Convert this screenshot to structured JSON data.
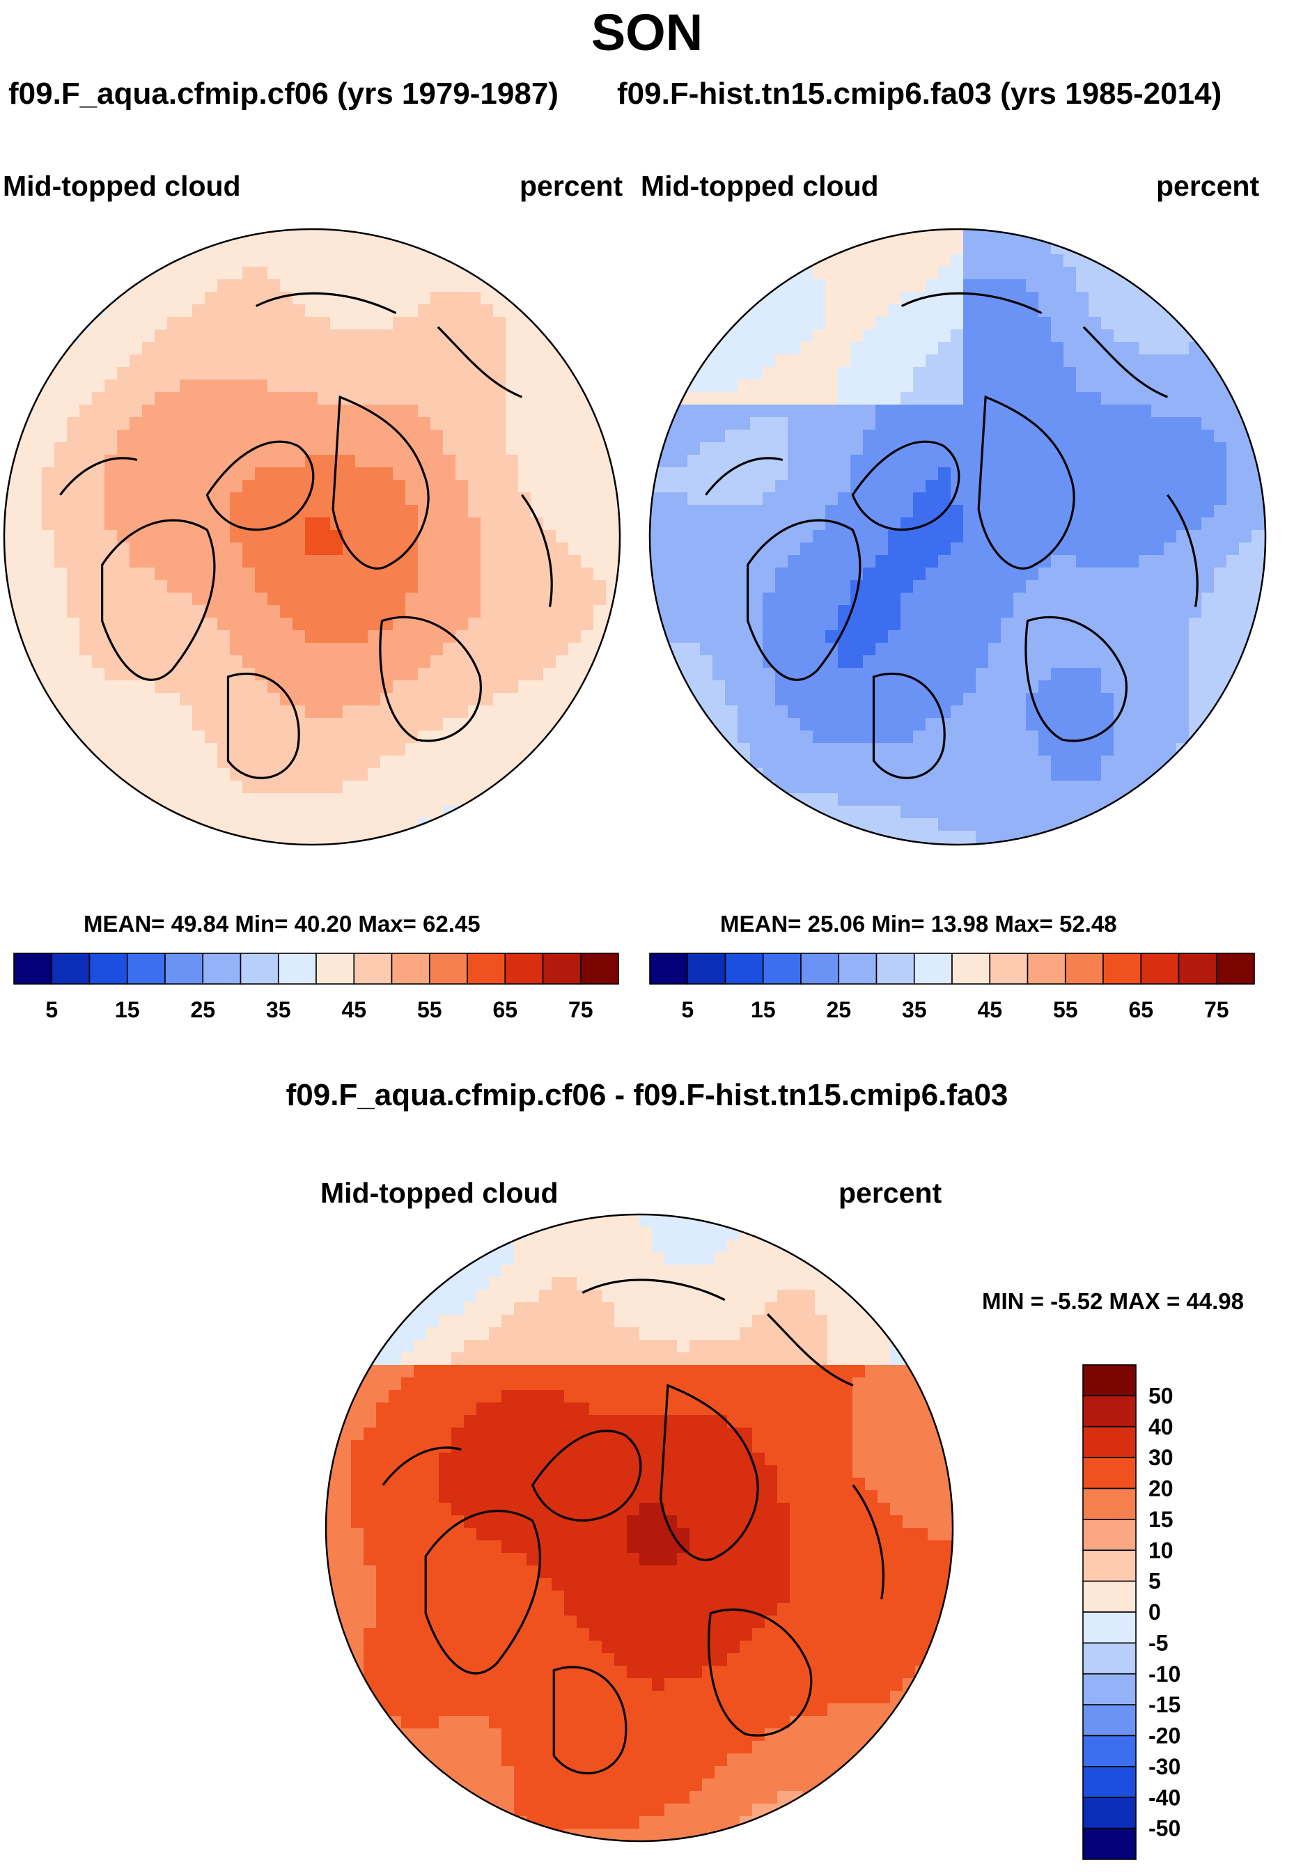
{
  "page": {
    "title": "SON",
    "left_run_title": "f09.F_aqua.cfmip.cf06 (yrs 1979-1987)",
    "right_run_title": "f09.F-hist.tn15.cmip6.fa03 (yrs 1985-2014)",
    "diff_title": "f09.F_aqua.cfmip.cf06 - f09.F-hist.tn15.cmip6.fa03"
  },
  "panels": [
    {
      "id": "left",
      "variable": "Mid-topped cloud",
      "units": "percent",
      "stats": "MEAN=  49.84  Min=  40.20  Max=  62.45",
      "dominant_level": 48
    },
    {
      "id": "right",
      "variable": "Mid-topped cloud",
      "units": "percent",
      "stats": "MEAN=  25.06  Min=  13.98  Max=  52.48",
      "dominant_level": 22
    }
  ],
  "diff_panel": {
    "variable": "Mid-topped cloud",
    "units": "percent",
    "minmax": "MIN =  -5.52 MAX =  44.98"
  },
  "chart_data": [
    {
      "type": "heatmap",
      "title": "Mid-topped cloud",
      "units": "percent",
      "projection": "north-polar-stereographic",
      "mean": 49.84,
      "min": 40.2,
      "max": 62.45,
      "colorbar": {
        "tick_labels": [
          "5",
          "15",
          "25",
          "35",
          "45",
          "55",
          "65",
          "75"
        ],
        "colors": [
          "#03007a",
          "#0a2eb8",
          "#1b4fe0",
          "#3d6ef0",
          "#6b93f5",
          "#93b2f8",
          "#b9cffb",
          "#dcebfd",
          "#fde8d8",
          "#fdcbb0",
          "#fba882",
          "#f7804f",
          "#f0521f",
          "#d72f10",
          "#b31a0b",
          "#7a0400"
        ]
      }
    },
    {
      "type": "heatmap",
      "title": "Mid-topped cloud",
      "units": "percent",
      "projection": "north-polar-stereographic",
      "mean": 25.06,
      "min": 13.98,
      "max": 52.48,
      "colorbar": {
        "tick_labels": [
          "5",
          "15",
          "25",
          "35",
          "45",
          "55",
          "65",
          "75"
        ],
        "colors": [
          "#03007a",
          "#0a2eb8",
          "#1b4fe0",
          "#3d6ef0",
          "#6b93f5",
          "#93b2f8",
          "#b9cffb",
          "#dcebfd",
          "#fde8d8",
          "#fdcbb0",
          "#fba882",
          "#f7804f",
          "#f0521f",
          "#d72f10",
          "#b31a0b",
          "#7a0400"
        ]
      }
    },
    {
      "type": "heatmap",
      "title": "f09.F_aqua.cfmip.cf06 - f09.F-hist.tn15.cmip6.fa03",
      "units": "percent",
      "projection": "north-polar-stereographic",
      "min": -5.52,
      "max": 44.98,
      "colorbar": {
        "tick_labels": [
          "50",
          "40",
          "30",
          "20",
          "15",
          "10",
          "5",
          "0",
          "-5",
          "-10",
          "-15",
          "-20",
          "-30",
          "-40",
          "-50"
        ],
        "colors": [
          "#7a0400",
          "#b31a0b",
          "#d72f10",
          "#f0521f",
          "#f7804f",
          "#fba882",
          "#fdcbb0",
          "#fde8d8",
          "#dcebfd",
          "#b9cffb",
          "#93b2f8",
          "#6b93f5",
          "#3d6ef0",
          "#1b4fe0",
          "#0a2eb8",
          "#03007a"
        ]
      }
    }
  ]
}
